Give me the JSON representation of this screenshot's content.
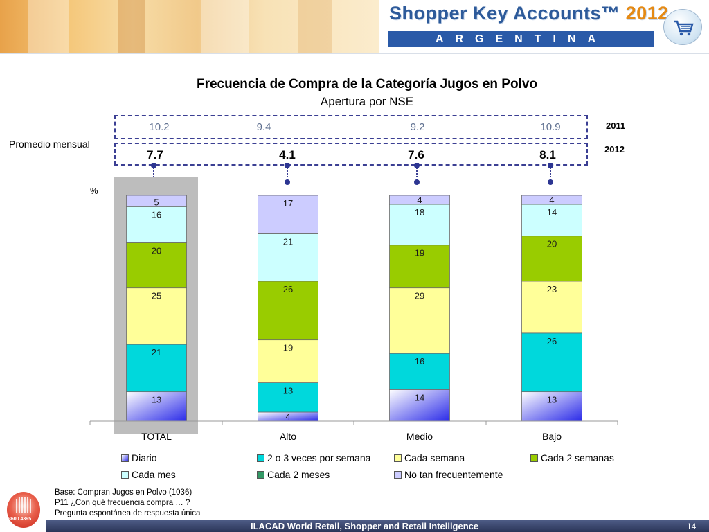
{
  "header": {
    "brand_name": "Shopper Key Accounts™",
    "brand_year": "2012",
    "country": "ARGENTINA",
    "colors": {
      "brand_blue": "#2a5aa8",
      "year_orange": "#e58a14"
    }
  },
  "promedio": {
    "label": "Promedio mensual",
    "pct_label": "%",
    "year_2011": "2011",
    "year_2012": "2012",
    "values_2011": [
      "10.2",
      "9.4",
      "9.2",
      "10.9"
    ],
    "values_2012": [
      "7.7",
      "4.1",
      "7.6",
      "8.1"
    ]
  },
  "chart_data": {
    "type": "bar",
    "stacked": true,
    "percent": true,
    "title": "Frecuencia de Compra de la  Categoría Jugos en Polvo",
    "subtitle": "Apertura por NSE",
    "categories": [
      "TOTAL",
      "Alto",
      "Medio",
      "Bajo"
    ],
    "highlighted_category": "TOTAL",
    "series": [
      {
        "name": "Diario",
        "color": "#4d4df0",
        "values": [
          13,
          4,
          14,
          13
        ]
      },
      {
        "name": "2 o 3 veces por semana",
        "color": "#00d8dc",
        "values": [
          21,
          13,
          16,
          26
        ]
      },
      {
        "name": "Cada semana",
        "color": "#ffff99",
        "values": [
          25,
          19,
          29,
          23
        ]
      },
      {
        "name": "Cada 2 semanas",
        "color": "#99cc00",
        "values": [
          20,
          26,
          19,
          20
        ]
      },
      {
        "name": "Cada mes",
        "color": "#ccffff",
        "values": [
          16,
          21,
          18,
          14
        ]
      },
      {
        "name": "Cada 2 meses",
        "color": "#339966",
        "values": [
          0,
          0,
          0,
          0
        ]
      },
      {
        "name": "No tan frecuentemente",
        "color": "#ccccff",
        "values": [
          5,
          17,
          4,
          4
        ]
      }
    ],
    "legend_position": "bottom"
  },
  "notes": {
    "base": "Base: Compran Jugos en Polvo (1036)",
    "question": "P11 ¿Con qué frecuencia compra … ?",
    "type": "Pregunta espontánea de respuesta única"
  },
  "footer": {
    "text": "ILACAD World Retail, Shopper and Retail Intelligence",
    "page": "14",
    "logo_code": "3600 4395"
  }
}
